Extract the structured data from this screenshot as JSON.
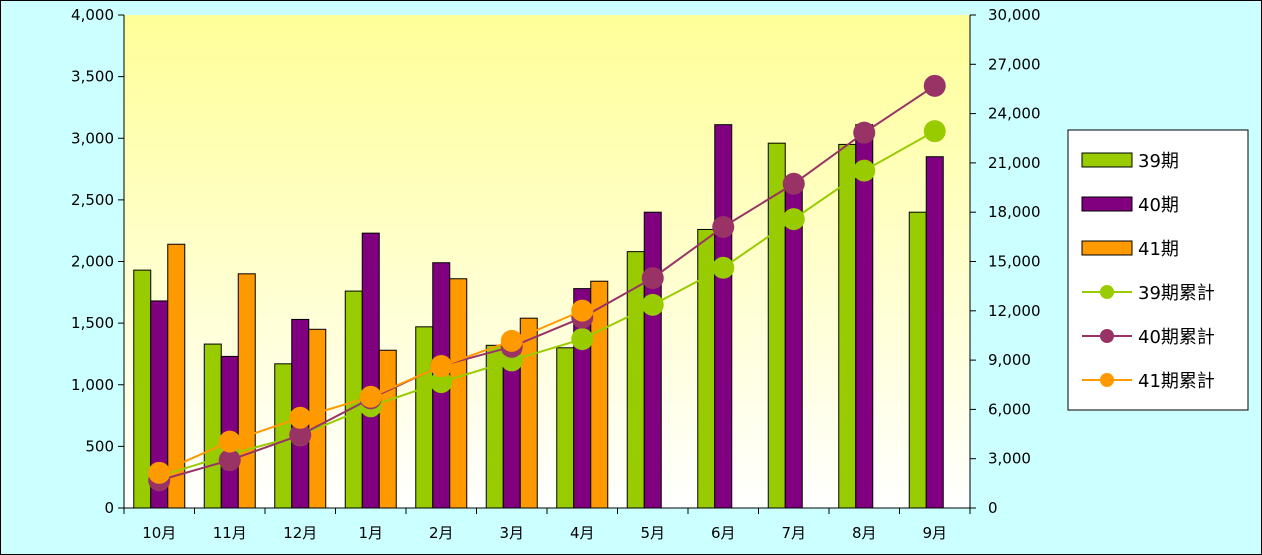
{
  "chart_data": {
    "type": "bar+line",
    "title": "",
    "xlabel": "",
    "ylabel": "",
    "categories": [
      "10月",
      "11月",
      "12月",
      "1月",
      "2月",
      "3月",
      "4月",
      "5月",
      "6月",
      "7月",
      "8月",
      "9月"
    ],
    "ylim_left": [
      0,
      4000
    ],
    "yticks_left": [
      "0",
      "500",
      "1,000",
      "1,500",
      "2,000",
      "2,500",
      "3,000",
      "3,500",
      "4,000"
    ],
    "ylim_right": [
      0,
      30000
    ],
    "yticks_right": [
      "0",
      "3,000",
      "6,000",
      "9,000",
      "12,000",
      "15,000",
      "18,000",
      "21,000",
      "24,000",
      "27,000",
      "30,000"
    ],
    "bar_series": [
      {
        "name": "39期",
        "color": "#99cc00",
        "values": [
          1930,
          1330,
          1170,
          1760,
          1470,
          1320,
          1300,
          2080,
          2260,
          2960,
          2950,
          2400
        ]
      },
      {
        "name": "40期",
        "color": "#800080",
        "values": [
          1680,
          1230,
          1530,
          2230,
          1990,
          1150,
          1780,
          2400,
          3110,
          2630,
          3110,
          2850
        ]
      },
      {
        "name": "41期",
        "color": "#ff9900",
        "values": [
          2140,
          1900,
          1450,
          1280,
          1860,
          1540,
          1840,
          null,
          null,
          null,
          null,
          null
        ]
      }
    ],
    "line_series": [
      {
        "name": "39期累計",
        "color": "#99cc00",
        "values": [
          1930,
          3260,
          4430,
          6190,
          7660,
          8980,
          10280,
          12360,
          14620,
          17580,
          20530,
          22930
        ]
      },
      {
        "name": "40期累計",
        "color": "#993366",
        "values": [
          1680,
          2910,
          4440,
          6670,
          8660,
          9810,
          11590,
          13990,
          17100,
          19730,
          22840,
          25690
        ]
      },
      {
        "name": "41期累計",
        "color": "#ff9900",
        "values": [
          2140,
          4040,
          5490,
          6770,
          8630,
          10170,
          12010,
          null,
          null,
          null,
          null,
          null
        ]
      }
    ],
    "legend": {
      "position": "right"
    },
    "plot_background": [
      "#ffff99",
      "#ffffff"
    ]
  }
}
